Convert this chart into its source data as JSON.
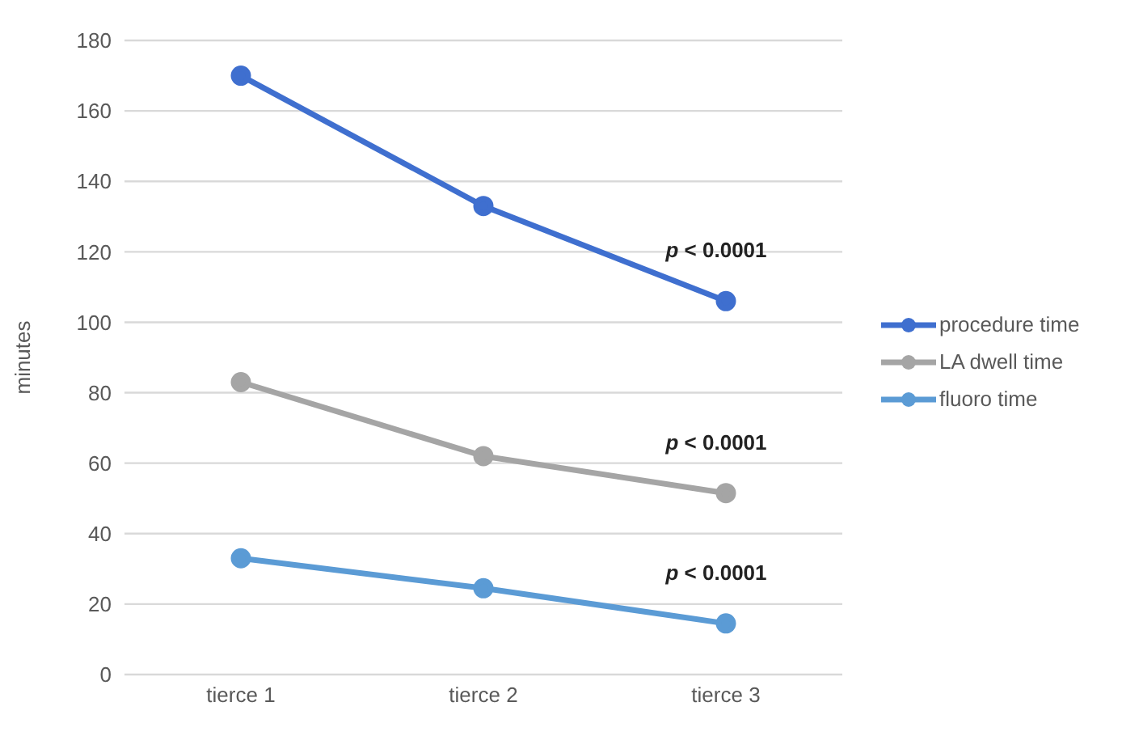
{
  "chart_data": {
    "type": "line",
    "ylabel": "minutes",
    "categories": [
      "tierce 1",
      "tierce 2",
      "tierce 3"
    ],
    "series": [
      {
        "name": "procedure time",
        "color": "#3f6fcf",
        "values": [
          170,
          133,
          106
        ]
      },
      {
        "name": "LA dwell time",
        "color": "#a5a5a5",
        "values": [
          83,
          62,
          51.5
        ]
      },
      {
        "name": "fluoro time",
        "color": "#5b9bd5",
        "values": [
          33,
          24.5,
          14.5
        ]
      }
    ],
    "ylim": [
      0,
      180
    ],
    "yticks": [
      0,
      20,
      40,
      60,
      80,
      100,
      120,
      140,
      160,
      180
    ],
    "grid": "y",
    "legend": "right",
    "marker": "circle",
    "line_style": "solid",
    "annotations": [
      "p < 0.0001",
      "p < 0.0001",
      "p < 0.0001"
    ]
  }
}
